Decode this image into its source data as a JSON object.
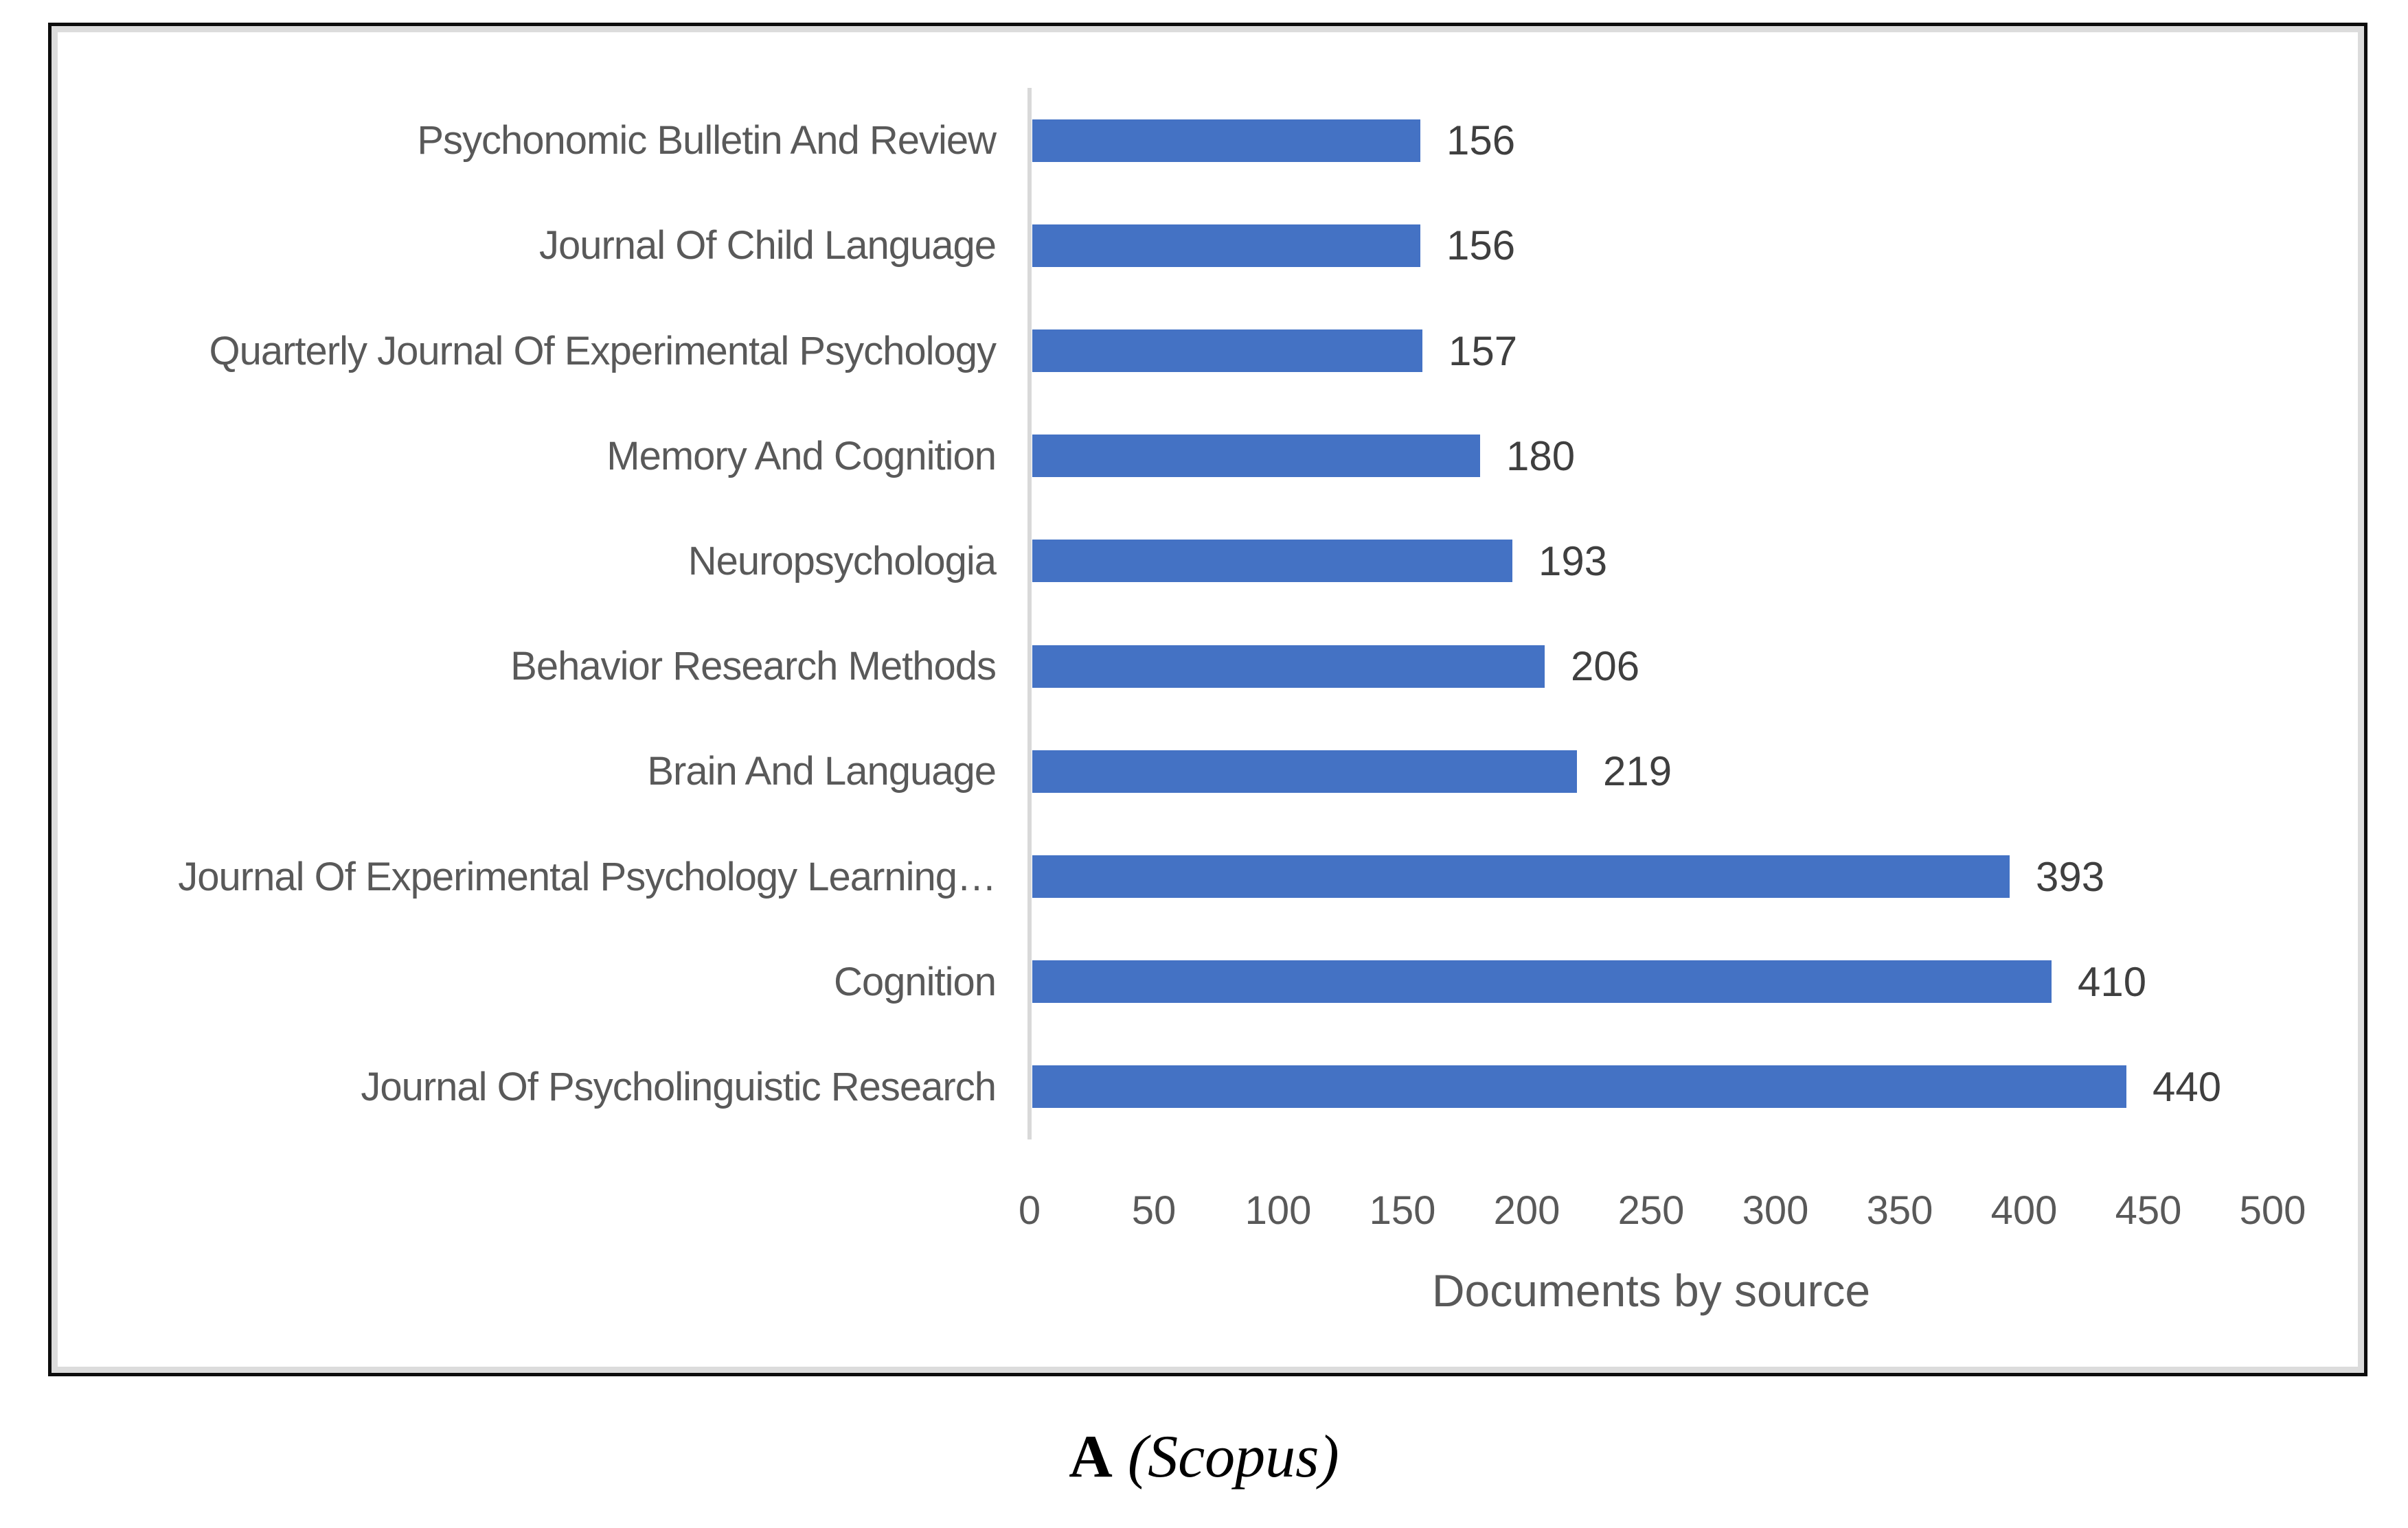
{
  "figure": {
    "caption": {
      "label": "A",
      "source": "(Scopus)"
    }
  },
  "chart_data": {
    "type": "bar",
    "orientation": "horizontal",
    "title": "",
    "xlabel": "Documents by source",
    "ylabel": "",
    "categories": [
      "Psychonomic Bulletin And Review",
      "Journal Of Child Language",
      "Quarterly Journal Of Experimental Psychology",
      "Memory And Cognition",
      "Neuropsychologia",
      "Behavior Research Methods",
      "Brain And Language",
      "Journal Of Experimental Psychology Learning…",
      "Cognition",
      "Journal Of Psycholinguistic Research"
    ],
    "values": [
      156,
      156,
      157,
      180,
      193,
      206,
      219,
      393,
      410,
      440
    ],
    "value_labels": [
      "156",
      "156",
      "157",
      "180",
      "193",
      "206",
      "219",
      "393",
      "410",
      "440"
    ],
    "xlim": [
      0,
      500
    ],
    "xticks": [
      0,
      50,
      100,
      150,
      200,
      250,
      300,
      350,
      400,
      450,
      500
    ],
    "grid": false,
    "legend_position": "none",
    "bar_color": "#4472C4",
    "axis_line_color": "#D9D9D9",
    "tick_text_color": "#595959",
    "category_text_color": "#595959",
    "value_text_color": "#3F3F3F"
  }
}
